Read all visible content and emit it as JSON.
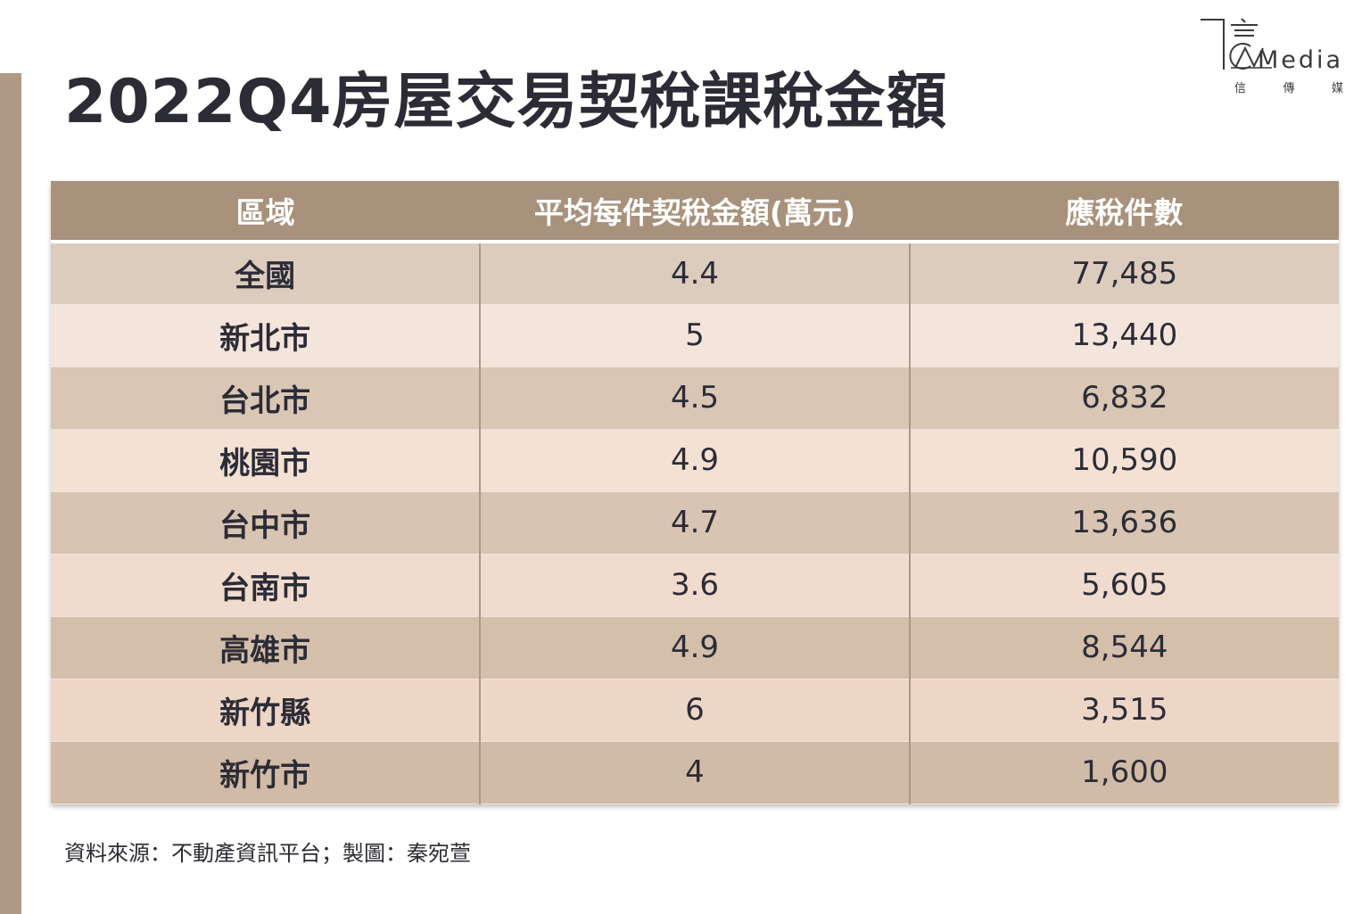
{
  "title": "2022Q4房屋交易契稅課稅金額",
  "logo": {
    "text": "Media",
    "sub": [
      "信",
      "傳",
      "媒"
    ]
  },
  "table": {
    "headers": [
      "區域",
      "平均每件契稅金額(萬元)",
      "應稅件數"
    ],
    "rows": [
      [
        "全國",
        "4.4",
        "77,485"
      ],
      [
        "新北市",
        "5",
        "13,440"
      ],
      [
        "台北市",
        "4.5",
        "6,832"
      ],
      [
        "桃園市",
        "4.9",
        "10,590"
      ],
      [
        "台中市",
        "4.7",
        "13,636"
      ],
      [
        "台南市",
        "3.6",
        "5,605"
      ],
      [
        "高雄市",
        "4.9",
        "8,544"
      ],
      [
        "新竹縣",
        "6",
        "3,515"
      ],
      [
        "新竹市",
        "4",
        "1,600"
      ]
    ]
  },
  "source": "資料來源：不動產資訊平台；製圖：秦宛萱",
  "colors": {
    "accent": "#a8927c",
    "side_bar": "#b09a85"
  }
}
